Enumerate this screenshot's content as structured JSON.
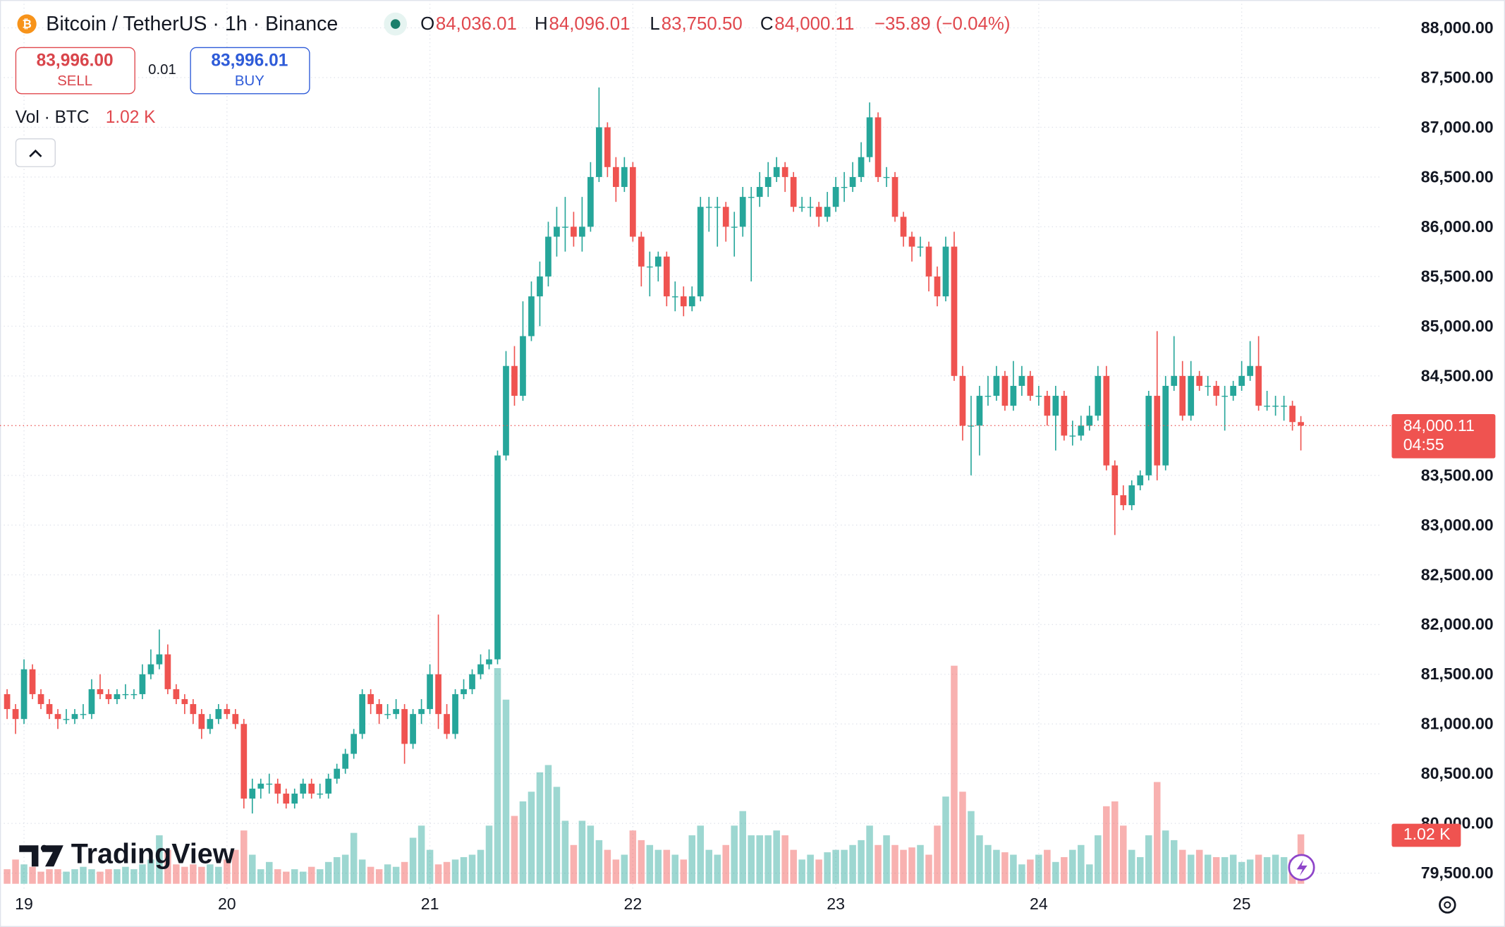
{
  "header": {
    "symbol": "Bitcoin / TetherUS · 1h · Binance",
    "o_label": "O",
    "o_value": "84,036.01",
    "h_label": "H",
    "h_value": "84,096.01",
    "l_label": "L",
    "l_value": "83,750.50",
    "c_label": "C",
    "c_value": "84,000.11",
    "change": "−35.89 (−0.04%)"
  },
  "trade_panel": {
    "sell_price": "83,996.00",
    "sell_label": "SELL",
    "spread": "0.01",
    "buy_price": "83,996.01",
    "buy_label": "BUY"
  },
  "volume_legend": {
    "label": "Vol · BTC",
    "value": "1.02 K"
  },
  "price_badge": {
    "price": "84,000.11",
    "countdown": "04:55"
  },
  "volume_badge": "1.02 K",
  "logo": "TradingView",
  "chart_data": {
    "type": "candlestick",
    "up_color": "#26a69a",
    "down_color": "#ef5350",
    "grid": true,
    "ylim": [
      79345,
      88280
    ],
    "yticks": [
      {
        "value": 88000,
        "label": "88,000.00"
      },
      {
        "value": 87500,
        "label": "87,500.00"
      },
      {
        "value": 87000,
        "label": "87,000.00"
      },
      {
        "value": 86500,
        "label": "86,500.00"
      },
      {
        "value": 86000,
        "label": "86,000.00"
      },
      {
        "value": 85500,
        "label": "85,500.00"
      },
      {
        "value": 85000,
        "label": "85,000.00"
      },
      {
        "value": 84500,
        "label": "84,500.00"
      },
      {
        "value": 84000,
        "label": "84,000.00"
      },
      {
        "value": 83500,
        "label": "83,500.00"
      },
      {
        "value": 83000,
        "label": "83,000.00"
      },
      {
        "value": 82500,
        "label": "82,500.00"
      },
      {
        "value": 82000,
        "label": "82,000.00"
      },
      {
        "value": 81500,
        "label": "81,500.00"
      },
      {
        "value": 81000,
        "label": "81,000.00"
      },
      {
        "value": 80500,
        "label": "80,500.00"
      },
      {
        "value": 80000,
        "label": "80,000.00"
      },
      {
        "value": 79500,
        "label": "79,500.00"
      }
    ],
    "categories": [
      null,
      null,
      "19",
      null,
      null,
      null,
      null,
      null,
      null,
      null,
      null,
      null,
      null,
      null,
      null,
      null,
      null,
      null,
      null,
      null,
      null,
      null,
      null,
      null,
      null,
      null,
      "20",
      null,
      null,
      null,
      null,
      null,
      null,
      null,
      null,
      null,
      null,
      null,
      null,
      null,
      null,
      null,
      null,
      null,
      null,
      null,
      null,
      null,
      null,
      null,
      "21",
      null,
      null,
      null,
      null,
      null,
      null,
      null,
      null,
      null,
      null,
      null,
      null,
      null,
      null,
      null,
      null,
      null,
      null,
      null,
      null,
      null,
      null,
      null,
      "22",
      null,
      null,
      null,
      null,
      null,
      null,
      null,
      null,
      null,
      null,
      null,
      null,
      null,
      null,
      null,
      null,
      null,
      null,
      null,
      null,
      null,
      null,
      null,
      "23",
      null,
      null,
      null,
      null,
      null,
      null,
      null,
      null,
      null,
      null,
      null,
      null,
      null,
      null,
      null,
      null,
      null,
      null,
      null,
      null,
      null,
      null,
      null,
      "24",
      null,
      null,
      null,
      null,
      null,
      null,
      null,
      null,
      null,
      null,
      null,
      null,
      null,
      null,
      null,
      null,
      null,
      null,
      null,
      null,
      null,
      null,
      null,
      "25",
      null,
      null,
      null,
      null,
      null,
      null,
      null
    ],
    "candles": [
      [
        81300,
        81350,
        81050,
        81150
      ],
      [
        81150,
        81200,
        80900,
        81050
      ],
      [
        81050,
        81650,
        81000,
        81550
      ],
      [
        81550,
        81600,
        81250,
        81300
      ],
      [
        81300,
        81350,
        81150,
        81200
      ],
      [
        81200,
        81250,
        81050,
        81100
      ],
      [
        81100,
        81150,
        80950,
        81050
      ],
      [
        81050,
        81150,
        81000,
        81050
      ],
      [
        81050,
        81150,
        81000,
        81100
      ],
      [
        81100,
        81200,
        81050,
        81100
      ],
      [
        81100,
        81450,
        81050,
        81350
      ],
      [
        81350,
        81500,
        81250,
        81300
      ],
      [
        81300,
        81350,
        81200,
        81250
      ],
      [
        81250,
        81350,
        81200,
        81300
      ],
      [
        81300,
        81400,
        81250,
        81300
      ],
      [
        81300,
        81350,
        81250,
        81300
      ],
      [
        81300,
        81600,
        81250,
        81500
      ],
      [
        81500,
        81750,
        81450,
        81600
      ],
      [
        81600,
        81950,
        81550,
        81700
      ],
      [
        81700,
        81800,
        81300,
        81350
      ],
      [
        81350,
        81400,
        81200,
        81250
      ],
      [
        81250,
        81300,
        81100,
        81200
      ],
      [
        81200,
        81250,
        81000,
        81100
      ],
      [
        81100,
        81150,
        80850,
        80950
      ],
      [
        80950,
        81100,
        80900,
        81050
      ],
      [
        81050,
        81200,
        81000,
        81150
      ],
      [
        81150,
        81200,
        81050,
        81100
      ],
      [
        81100,
        81150,
        80950,
        81000
      ],
      [
        81000,
        81050,
        80150,
        80250
      ],
      [
        80250,
        80450,
        80100,
        80350
      ],
      [
        80350,
        80450,
        80250,
        80400
      ],
      [
        80400,
        80500,
        80300,
        80400
      ],
      [
        80400,
        80450,
        80200,
        80300
      ],
      [
        80300,
        80350,
        80150,
        80200
      ],
      [
        80200,
        80350,
        80150,
        80300
      ],
      [
        80300,
        80450,
        80250,
        80400
      ],
      [
        80400,
        80450,
        80250,
        80300
      ],
      [
        80300,
        80400,
        80250,
        80300
      ],
      [
        80300,
        80500,
        80250,
        80450
      ],
      [
        80450,
        80600,
        80400,
        80550
      ],
      [
        80550,
        80750,
        80500,
        80700
      ],
      [
        80700,
        80950,
        80650,
        80900
      ],
      [
        80900,
        81350,
        80850,
        81300
      ],
      [
        81300,
        81350,
        81100,
        81200
      ],
      [
        81200,
        81250,
        81000,
        81100
      ],
      [
        81100,
        81200,
        81050,
        81100
      ],
      [
        81100,
        81250,
        81050,
        81150
      ],
      [
        81150,
        81200,
        80600,
        80800
      ],
      [
        80800,
        81150,
        80750,
        81100
      ],
      [
        81100,
        81250,
        81000,
        81150
      ],
      [
        81150,
        81600,
        81100,
        81500
      ],
      [
        81500,
        82100,
        80950,
        81100
      ],
      [
        81100,
        81200,
        80850,
        80900
      ],
      [
        80900,
        81350,
        80850,
        81300
      ],
      [
        81300,
        81450,
        81250,
        81350
      ],
      [
        81350,
        81550,
        81300,
        81500
      ],
      [
        81500,
        81700,
        81450,
        81600
      ],
      [
        81600,
        81750,
        81550,
        81650
      ],
      [
        81650,
        83750,
        81600,
        83700
      ],
      [
        83700,
        84750,
        83650,
        84600
      ],
      [
        84600,
        84800,
        84200,
        84300
      ],
      [
        84300,
        85250,
        84250,
        84900
      ],
      [
        84900,
        85450,
        84850,
        85300
      ],
      [
        85300,
        85650,
        85000,
        85500
      ],
      [
        85500,
        86050,
        85400,
        85900
      ],
      [
        85900,
        86200,
        85700,
        86000
      ],
      [
        86000,
        86300,
        85750,
        86000
      ],
      [
        86000,
        86150,
        85800,
        85900
      ],
      [
        85900,
        86300,
        85750,
        86000
      ],
      [
        86000,
        86650,
        85950,
        86500
      ],
      [
        86500,
        87400,
        86450,
        87000
      ],
      [
        87000,
        87050,
        86500,
        86600
      ],
      [
        86600,
        86700,
        86250,
        86400
      ],
      [
        86400,
        86700,
        86350,
        86600
      ],
      [
        86600,
        86650,
        85850,
        85900
      ],
      [
        85900,
        85950,
        85400,
        85600
      ],
      [
        85600,
        85750,
        85300,
        85600
      ],
      [
        85600,
        85750,
        85450,
        85700
      ],
      [
        85700,
        85750,
        85200,
        85300
      ],
      [
        85300,
        85450,
        85150,
        85300
      ],
      [
        85300,
        85400,
        85100,
        85200
      ],
      [
        85200,
        85400,
        85150,
        85300
      ],
      [
        85300,
        86300,
        85250,
        86200
      ],
      [
        86200,
        86300,
        85950,
        86200
      ],
      [
        86200,
        86300,
        85800,
        86200
      ],
      [
        86200,
        86250,
        85850,
        86000
      ],
      [
        86000,
        86150,
        85700,
        86000
      ],
      [
        86000,
        86400,
        85900,
        86300
      ],
      [
        86300,
        86400,
        85450,
        86300
      ],
      [
        86300,
        86550,
        86200,
        86400
      ],
      [
        86400,
        86650,
        86300,
        86500
      ],
      [
        86500,
        86700,
        86450,
        86600
      ],
      [
        86600,
        86650,
        86350,
        86500
      ],
      [
        86500,
        86550,
        86150,
        86200
      ],
      [
        86200,
        86300,
        86150,
        86200
      ],
      [
        86200,
        86300,
        86100,
        86200
      ],
      [
        86200,
        86250,
        86000,
        86100
      ],
      [
        86100,
        86350,
        86050,
        86200
      ],
      [
        86200,
        86500,
        86150,
        86400
      ],
      [
        86400,
        86550,
        86250,
        86400
      ],
      [
        86400,
        86650,
        86350,
        86500
      ],
      [
        86500,
        86850,
        86450,
        86700
      ],
      [
        86700,
        87250,
        86650,
        87100
      ],
      [
        87100,
        87150,
        86450,
        86500
      ],
      [
        86500,
        86600,
        86400,
        86500
      ],
      [
        86500,
        86550,
        86050,
        86100
      ],
      [
        86100,
        86150,
        85800,
        85900
      ],
      [
        85900,
        85950,
        85650,
        85800
      ],
      [
        85800,
        85900,
        85700,
        85800
      ],
      [
        85800,
        85850,
        85350,
        85500
      ],
      [
        85500,
        85600,
        85200,
        85300
      ],
      [
        85300,
        85900,
        85250,
        85800
      ],
      [
        85800,
        85950,
        84450,
        84500
      ],
      [
        84500,
        84600,
        83850,
        84000
      ],
      [
        84000,
        84300,
        83500,
        84000
      ],
      [
        84000,
        84400,
        83700,
        84300
      ],
      [
        84300,
        84500,
        84200,
        84300
      ],
      [
        84300,
        84600,
        84250,
        84500
      ],
      [
        84500,
        84550,
        84150,
        84200
      ],
      [
        84200,
        84650,
        84150,
        84400
      ],
      [
        84400,
        84600,
        84300,
        84500
      ],
      [
        84500,
        84550,
        84250,
        84300
      ],
      [
        84300,
        84400,
        84200,
        84300
      ],
      [
        84300,
        84350,
        84000,
        84100
      ],
      [
        84100,
        84400,
        83750,
        84300
      ],
      [
        84300,
        84350,
        83850,
        83900
      ],
      [
        83900,
        84050,
        83800,
        83900
      ],
      [
        83900,
        84100,
        83850,
        84000
      ],
      [
        84000,
        84200,
        83950,
        84100
      ],
      [
        84100,
        84600,
        84050,
        84500
      ],
      [
        84500,
        84600,
        83550,
        83600
      ],
      [
        83600,
        83650,
        82900,
        83300
      ],
      [
        83300,
        83400,
        83150,
        83200
      ],
      [
        83200,
        83450,
        83150,
        83400
      ],
      [
        83400,
        83550,
        83350,
        83500
      ],
      [
        83500,
        84350,
        83450,
        84300
      ],
      [
        84300,
        84950,
        83450,
        83600
      ],
      [
        83600,
        84500,
        83550,
        84400
      ],
      [
        84400,
        84900,
        84350,
        84500
      ],
      [
        84500,
        84650,
        84050,
        84100
      ],
      [
        84100,
        84650,
        84050,
        84500
      ],
      [
        84500,
        84550,
        84350,
        84400
      ],
      [
        84400,
        84500,
        84300,
        84400
      ],
      [
        84400,
        84450,
        84200,
        84300
      ],
      [
        84300,
        84400,
        83950,
        84300
      ],
      [
        84300,
        84450,
        84250,
        84400
      ],
      [
        84400,
        84650,
        84350,
        84500
      ],
      [
        84500,
        84850,
        84450,
        84600
      ],
      [
        84600,
        84900,
        84150,
        84200
      ],
      [
        84200,
        84350,
        84150,
        84200
      ],
      [
        84200,
        84300,
        84100,
        84200
      ],
      [
        84200,
        84300,
        84050,
        84200
      ],
      [
        84200,
        84250,
        83950,
        84036.01
      ],
      [
        84036.01,
        84096.01,
        83750.5,
        84000.11
      ]
    ],
    "volumes": [
      300,
      500,
      400,
      350,
      250,
      300,
      300,
      250,
      300,
      350,
      300,
      250,
      300,
      300,
      350,
      300,
      400,
      500,
      1000,
      700,
      400,
      350,
      400,
      350,
      400,
      350,
      500,
      700,
      1100,
      600,
      300,
      450,
      300,
      250,
      300,
      250,
      350,
      300,
      450,
      550,
      600,
      1050,
      500,
      350,
      300,
      400,
      350,
      450,
      950,
      1200,
      700,
      400,
      450,
      500,
      550,
      600,
      700,
      1200,
      4450,
      3800,
      1400,
      1700,
      1900,
      2300,
      2450,
      2000,
      1300,
      800,
      1300,
      1200,
      900,
      700,
      500,
      600,
      1100,
      900,
      800,
      700,
      700,
      600,
      500,
      1000,
      1200,
      700,
      600,
      800,
      1200,
      1500,
      1000,
      1000,
      1000,
      1100,
      1000,
      700,
      500,
      600,
      500,
      650,
      700,
      700,
      800,
      900,
      1200,
      800,
      1000,
      800,
      700,
      750,
      800,
      600,
      1200,
      1800,
      4500,
      1900,
      1500,
      1000,
      800,
      700,
      650,
      600,
      400,
      500,
      600,
      700,
      450,
      550,
      700,
      800,
      400,
      1000,
      1600,
      1700,
      1200,
      700,
      550,
      1000,
      2100,
      1100,
      900,
      700,
      600,
      700,
      600,
      550,
      550,
      600,
      450,
      500,
      600,
      550,
      600,
      550,
      500,
      1020
    ]
  }
}
